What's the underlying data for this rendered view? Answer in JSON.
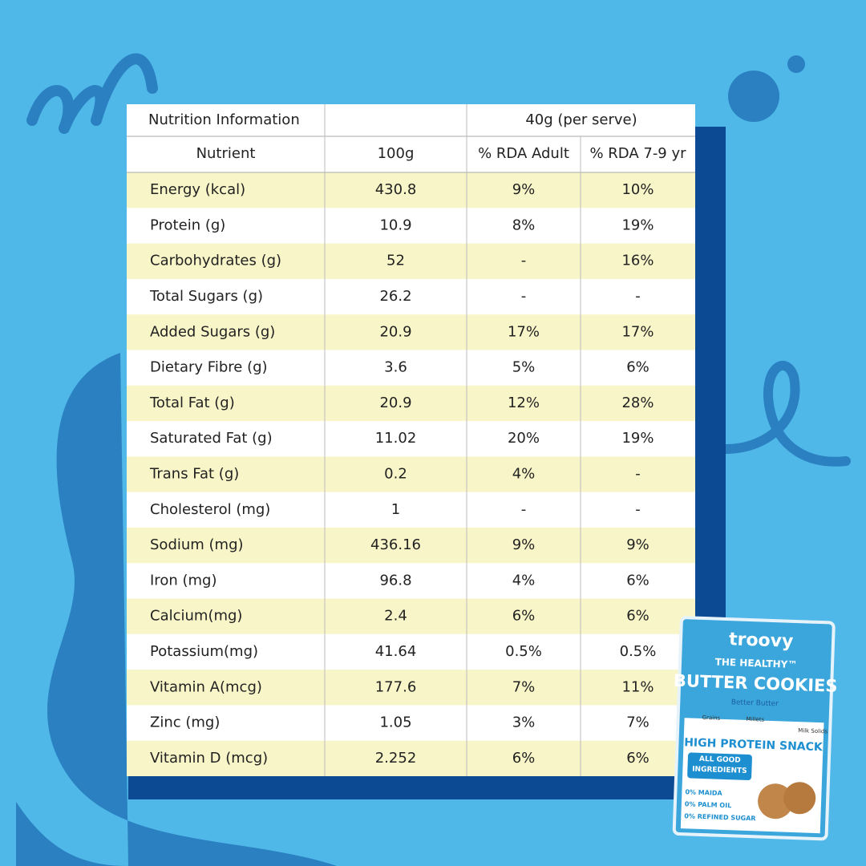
{
  "table": {
    "title": "Nutrition Information",
    "serve": "40g (per serve)",
    "columns": [
      "Nutrient",
      "100g",
      "% RDA Adult",
      "% RDA 7-9 yr"
    ],
    "rows": [
      [
        "Energy (kcal)",
        "430.8",
        "9%",
        "10%"
      ],
      [
        "Protein (g)",
        "10.9",
        "8%",
        "19%"
      ],
      [
        "Carbohydrates (g)",
        "52",
        "-",
        "16%"
      ],
      [
        "Total Sugars (g)",
        "26.2",
        "-",
        "-"
      ],
      [
        "Added Sugars (g)",
        "20.9",
        "17%",
        "17%"
      ],
      [
        "Dietary Fibre (g)",
        "3.6",
        "5%",
        "6%"
      ],
      [
        "Total Fat (g)",
        "20.9",
        "12%",
        "28%"
      ],
      [
        "Saturated Fat (g)",
        "11.02",
        "20%",
        "19%"
      ],
      [
        "Trans Fat (g)",
        "0.2",
        "4%",
        "-"
      ],
      [
        "Cholesterol (mg)",
        "1",
        "-",
        "-"
      ],
      [
        "Sodium (mg)",
        "436.16",
        "9%",
        "9%"
      ],
      [
        "Iron (mg)",
        "96.8",
        "4%",
        "6%"
      ],
      [
        "Calcium(mg)",
        "2.4",
        "6%",
        "6%"
      ],
      [
        "Potassium(mg)",
        "41.64",
        "0.5%",
        "0.5%"
      ],
      [
        "Vitamin A(mcg)",
        "177.6",
        "7%",
        "11%"
      ],
      [
        "Zinc (mg)",
        "1.05",
        "3%",
        "7%"
      ],
      [
        "Vitamin D (mcg)",
        "2.252",
        "6%",
        "6%"
      ]
    ]
  },
  "package": {
    "brand": "troovy",
    "line": "THE HEALTHY™",
    "product": "BUTTER COOKIES",
    "tagline": "Better Butter",
    "icons": [
      "Grains",
      "Millets",
      "Milk Solids"
    ],
    "claim": "HIGH PROTEIN SNACK",
    "badge": [
      "ALL GOOD",
      "INGREDIENTS"
    ],
    "free": [
      "0% MAIDA",
      "0% PALM OIL",
      "0% REFINED SUGAR"
    ]
  }
}
